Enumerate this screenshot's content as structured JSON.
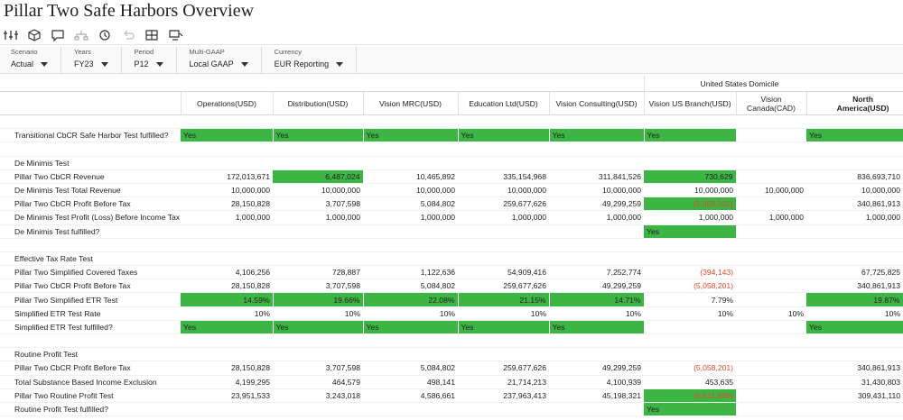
{
  "header": {
    "title": "Pillar Two Safe Harbors Overview"
  },
  "pov": [
    {
      "label": "Scenario",
      "value": "Actual"
    },
    {
      "label": "Years",
      "value": "FY23"
    },
    {
      "label": "Period",
      "value": "P12"
    },
    {
      "label": "Multi-GAAP",
      "value": "Local GAAP"
    },
    {
      "label": "Currency",
      "value": "EUR Reporting"
    }
  ],
  "table": {
    "group": "United States Domicile",
    "columns": [
      "Operations(USD)",
      "Distribution(USD)",
      "Vision MRC(USD)",
      "Education Ltd(USD)",
      "Vision Consulting(USD)",
      "Vision US Branch(USD)",
      "Vision Canada(CAD)",
      "North America(USD)"
    ],
    "highlight_color": "#3cb545",
    "rows": [
      null,
      {
        "label": "Transitional CbCR Safe Harbor Test fulfilled?",
        "cells": [
          "Yes",
          "Yes",
          "Yes",
          "Yes",
          "Yes",
          "Yes",
          null,
          "Yes"
        ],
        "highlight": [
          0,
          1,
          2,
          3,
          4,
          5,
          7
        ]
      },
      null,
      {
        "label": "De Minimis Test"
      },
      {
        "label": "Pillar Two CbCR Revenue",
        "cells": [
          "172,013,671",
          "6,487,024",
          "10,465,892",
          "335,154,968",
          "311,841,526",
          "730,629",
          null,
          "836,693,710"
        ],
        "highlight": [
          1,
          5
        ]
      },
      {
        "label": "De Minimis Test Total Revenue",
        "cells": [
          "10,000,000",
          "10,000,000",
          "10,000,000",
          "10,000,000",
          "10,000,000",
          "10,000,000",
          "10,000,000",
          "10,000,000"
        ]
      },
      {
        "label": "Pillar Two CbCR Profit Before Tax",
        "cells": [
          "28,150,828",
          "3,707,598",
          "5,084,802",
          "259,677,626",
          "49,299,259",
          "(5,058,201)",
          null,
          "340,861,913"
        ],
        "highlight": [
          5
        ]
      },
      {
        "label": "De Minimis Test Profit (Loss) Before Income Tax",
        "cells": [
          "1,000,000",
          "1,000,000",
          "1,000,000",
          "1,000,000",
          "1,000,000",
          "1,000,000",
          "1,000,000",
          "1,000,000"
        ]
      },
      {
        "label": "De Minimis Test fulfilled?",
        "cells": [
          null,
          null,
          null,
          null,
          null,
          "Yes",
          null,
          null
        ],
        "highlight": [
          5
        ]
      },
      null,
      {
        "label": "Effective Tax Rate Test"
      },
      {
        "label": "Pillar Two Simplified Covered Taxes",
        "cells": [
          "4,106,256",
          "728,887",
          "1,122,636",
          "54,909,416",
          "7,252,774",
          "(394,143)",
          null,
          "67,725,825"
        ]
      },
      {
        "label": "Pillar Two CbCR Profit Before Tax",
        "cells": [
          "28,150,828",
          "3,707,598",
          "5,084,802",
          "259,677,626",
          "49,299,259",
          "(5,058,201)",
          null,
          "340,861,913"
        ]
      },
      {
        "label": "Pillar Two Simplified ETR Test",
        "cells": [
          "14.59%",
          "19.66%",
          "22.08%",
          "21.15%",
          "14.71%",
          "7.79%",
          null,
          "19.87%"
        ],
        "highlight": [
          0,
          1,
          2,
          3,
          4,
          7
        ]
      },
      {
        "label": "Simplified ETR Test Rate",
        "cells": [
          "10%",
          "10%",
          "10%",
          "10%",
          "10%",
          "10%",
          "10%",
          "10%"
        ]
      },
      {
        "label": "Simplified ETR Test fulfilled?",
        "cells": [
          "Yes",
          "Yes",
          "Yes",
          "Yes",
          "Yes",
          null,
          null,
          "Yes"
        ],
        "highlight": [
          0,
          1,
          2,
          3,
          4,
          7
        ]
      },
      null,
      {
        "label": "Routine Profit Test"
      },
      {
        "label": "Pillar Two CbCR Profit Before Tax",
        "cells": [
          "28,150,828",
          "3,707,598",
          "5,084,802",
          "259,677,626",
          "49,299,259",
          "(5,058,201)",
          null,
          "340,861,913"
        ]
      },
      {
        "label": "Total Substance Based Income Exclusion",
        "cells": [
          "4,199,295",
          "464,579",
          "498,141",
          "21,714,213",
          "4,100,939",
          "453,635",
          null,
          "31,430,803"
        ]
      },
      {
        "label": "Pillar Two Routine Profit Test",
        "cells": [
          "23,951,533",
          "3,243,018",
          "4,586,661",
          "237,963,413",
          "45,198,321",
          "(5,511,836)",
          null,
          "309,431,110"
        ],
        "highlight": [
          5
        ]
      },
      {
        "label": "Routine Profit Test fulfilled?",
        "cells": [
          null,
          null,
          null,
          null,
          null,
          "Yes",
          null,
          null
        ],
        "highlight": [
          5
        ]
      }
    ]
  }
}
